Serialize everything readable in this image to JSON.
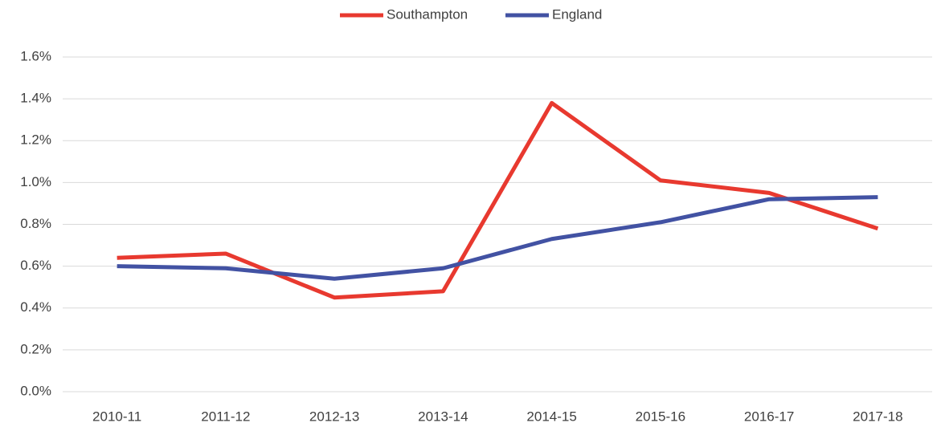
{
  "chart_data": {
    "type": "line",
    "categories": [
      "2010-11",
      "2011-12",
      "2012-13",
      "2013-14",
      "2014-15",
      "2015-16",
      "2016-17",
      "2017-18"
    ],
    "series": [
      {
        "name": "Southampton",
        "color": "#e8392f",
        "values": [
          0.64,
          0.66,
          0.45,
          0.48,
          1.38,
          1.01,
          0.95,
          0.78
        ]
      },
      {
        "name": "England",
        "color": "#4252a3",
        "values": [
          0.6,
          0.59,
          0.54,
          0.59,
          0.73,
          0.81,
          0.92,
          0.93
        ]
      }
    ],
    "ylim": [
      0,
      1.6
    ],
    "yticks": [
      {
        "value": 0,
        "label": "0.0%"
      },
      {
        "value": 0.2,
        "label": "0.2%"
      },
      {
        "value": 0.4,
        "label": "0.4%"
      },
      {
        "value": 0.6,
        "label": "0.6%"
      },
      {
        "value": 0.8,
        "label": "0.8%"
      },
      {
        "value": 1.0,
        "label": "1.0%"
      },
      {
        "value": 1.2,
        "label": "1.2%"
      },
      {
        "value": 1.4,
        "label": "1.4%"
      },
      {
        "value": 1.6,
        "label": "1.6%"
      }
    ],
    "grid": true,
    "legend": "top"
  }
}
